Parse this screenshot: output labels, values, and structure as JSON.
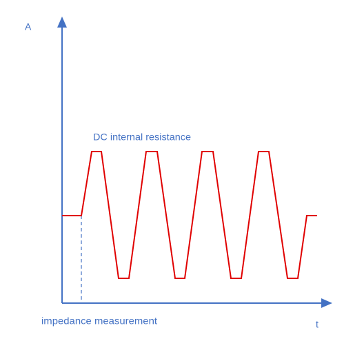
{
  "axes": {
    "y_label": "A",
    "x_label": "t"
  },
  "annotations": {
    "top": "DC internal resistance",
    "bottom": "impedance measurement"
  }
}
